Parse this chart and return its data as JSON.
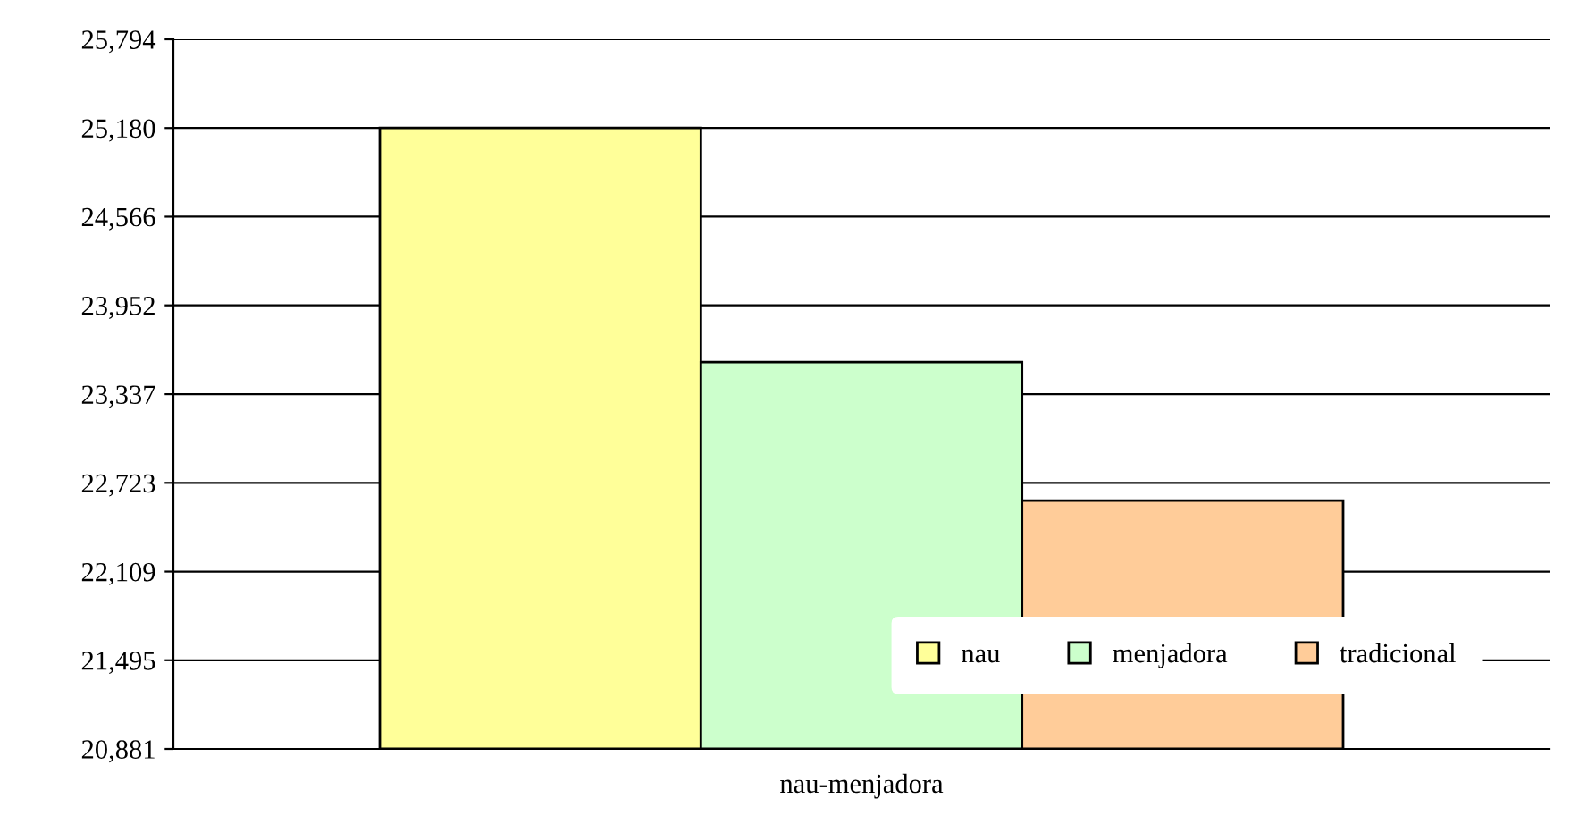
{
  "chart_data": {
    "type": "bar",
    "categories": [
      "nau-menjadora"
    ],
    "series": [
      {
        "name": "nau",
        "color": "#ffff99",
        "values": [
          25180
        ]
      },
      {
        "name": "menjadora",
        "color": "#ccffcc",
        "values": [
          23560
        ]
      },
      {
        "name": "tradicional",
        "color": "#ffcc99",
        "values": [
          22600
        ]
      }
    ],
    "ylim": [
      20881,
      25794
    ],
    "yticks": [
      {
        "value": 20881,
        "label": "20,881"
      },
      {
        "value": 21495,
        "label": "21,495"
      },
      {
        "value": 22109,
        "label": "22,109"
      },
      {
        "value": 22723,
        "label": "22,723"
      },
      {
        "value": 23337,
        "label": "23,337"
      },
      {
        "value": 23952,
        "label": "23,952"
      },
      {
        "value": 24566,
        "label": "24,566"
      },
      {
        "value": 25180,
        "label": "25,180"
      },
      {
        "value": 25794,
        "label": "25,794"
      }
    ],
    "grid": "y",
    "legend": "bottom right"
  }
}
